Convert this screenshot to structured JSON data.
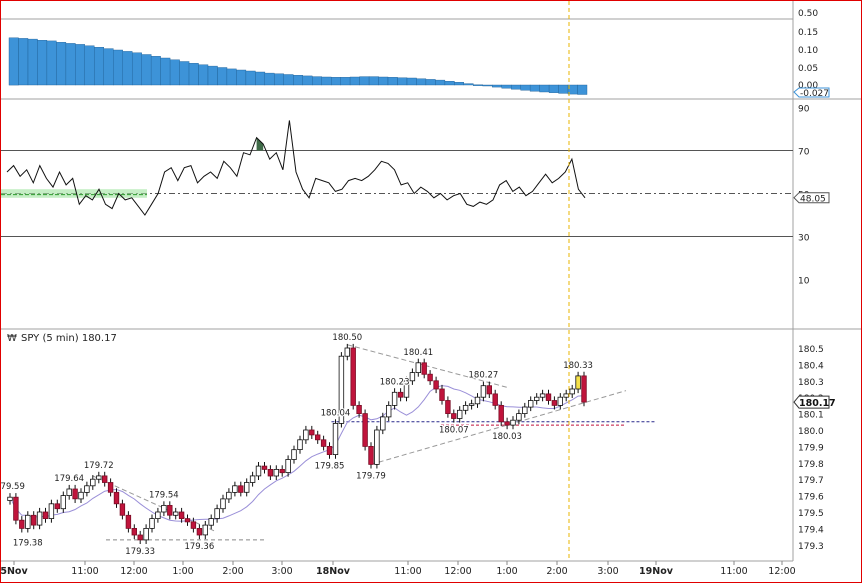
{
  "chart_data": [
    {
      "type": "bar",
      "panel": "oscillator-histogram",
      "series": [
        {
          "values": [
            0.135,
            0.133,
            0.131,
            0.128,
            0.126,
            0.122,
            0.119,
            0.116,
            0.112,
            0.108,
            0.104,
            0.1,
            0.096,
            0.092,
            0.087,
            0.082,
            0.077,
            0.072,
            0.067,
            0.062,
            0.058,
            0.054,
            0.05,
            0.046,
            0.043,
            0.04,
            0.037,
            0.034,
            0.032,
            0.03,
            0.028,
            0.026,
            0.024,
            0.023,
            0.022,
            0.022,
            0.023,
            0.024,
            0.024,
            0.023,
            0.022,
            0.021,
            0.02,
            0.018,
            0.016,
            0.014,
            0.011,
            0.008,
            0.004,
            0.001,
            -0.003,
            -0.006,
            -0.009,
            -0.012,
            -0.015,
            -0.018,
            -0.02,
            -0.022,
            -0.024,
            -0.026,
            -0.027
          ]
        }
      ],
      "yticks": [
        "0.50",
        "0.15",
        "0.10",
        "0.05",
        "0.00"
      ],
      "last_value": "-0.027",
      "color": "#3d93d8"
    },
    {
      "type": "line",
      "panel": "rsi",
      "series": [
        {
          "values": [
            60,
            63,
            58,
            61,
            55,
            63,
            57,
            53,
            60,
            54,
            57,
            45,
            49,
            47,
            52,
            45,
            43,
            50,
            47,
            48,
            44,
            40,
            45,
            50,
            60,
            62,
            56,
            62,
            63,
            55,
            58,
            60,
            57,
            65,
            62,
            58,
            69,
            68,
            76,
            73,
            66,
            69,
            61,
            84,
            60,
            52,
            48,
            57,
            56,
            55,
            51,
            52,
            56,
            57,
            56,
            58,
            61,
            65,
            64,
            61,
            54,
            55,
            50,
            53,
            51,
            48,
            50,
            47,
            49,
            50,
            45,
            44,
            46,
            45,
            47,
            54,
            56,
            51,
            53,
            49,
            51,
            55,
            59,
            55,
            57,
            60,
            66,
            52,
            48
          ]
        }
      ],
      "yticks": [
        "90",
        "70",
        "50",
        "30",
        "10"
      ],
      "levels": [
        70,
        50,
        30
      ],
      "ylim": [
        0,
        100
      ],
      "last_value": "48.05"
    },
    {
      "type": "candlestick",
      "panel": "price",
      "title": "SPY (5 min) 180.17",
      "ylim": [
        179.25,
        180.55
      ],
      "yticks": [
        "180.5",
        "180.4",
        "180.3",
        "180.2",
        "180.1",
        "180.0",
        "179.9",
        "179.8",
        "179.7",
        "179.6",
        "179.5",
        "179.4",
        "179.3"
      ],
      "last_value": "180.17",
      "x_labels": [
        "5Nov",
        "11:00",
        "12:00",
        "1:00",
        "2:00",
        "3:00",
        "18Nov",
        "11:00",
        "12:00",
        "1:00",
        "2:00",
        "3:00",
        "19Nov",
        "11:00",
        "12:00"
      ],
      "closes": [
        179.59,
        179.45,
        179.4,
        179.48,
        179.42,
        179.5,
        179.46,
        179.55,
        179.52,
        179.6,
        179.64,
        179.58,
        179.62,
        179.66,
        179.7,
        179.72,
        179.68,
        179.62,
        179.55,
        179.48,
        179.4,
        179.36,
        179.33,
        179.4,
        179.46,
        179.5,
        179.54,
        179.48,
        179.5,
        179.46,
        179.44,
        179.4,
        179.36,
        179.42,
        179.46,
        179.52,
        179.58,
        179.62,
        179.66,
        179.62,
        179.68,
        179.72,
        179.78,
        179.76,
        179.72,
        179.76,
        179.74,
        179.82,
        179.88,
        179.94,
        180.0,
        179.97,
        179.94,
        179.9,
        179.85,
        180.04,
        180.45,
        180.5,
        180.15,
        180.1,
        179.9,
        179.79,
        180.0,
        180.08,
        180.15,
        180.23,
        180.2,
        180.3,
        180.35,
        180.41,
        180.34,
        180.3,
        180.25,
        180.18,
        180.1,
        180.07,
        180.12,
        180.15,
        180.16,
        180.2,
        180.27,
        180.22,
        180.15,
        180.05,
        180.03,
        180.06,
        180.1,
        180.14,
        180.18,
        180.2,
        180.22,
        180.18,
        180.15,
        180.2,
        180.22,
        180.25,
        180.33,
        180.17
      ],
      "price_labels": [
        "179.59",
        "179.38",
        "179.64",
        "179.72",
        "179.33",
        "179.54",
        "179.36",
        "180.04",
        "179.85",
        "180.50",
        "179.79",
        "180.23",
        "180.41",
        "180.07",
        "180.27",
        "180.03",
        "180.33"
      ],
      "up_color": "#ffffff",
      "down_color": "#c0143c",
      "ma_color": "#9a8fd8"
    }
  ]
}
